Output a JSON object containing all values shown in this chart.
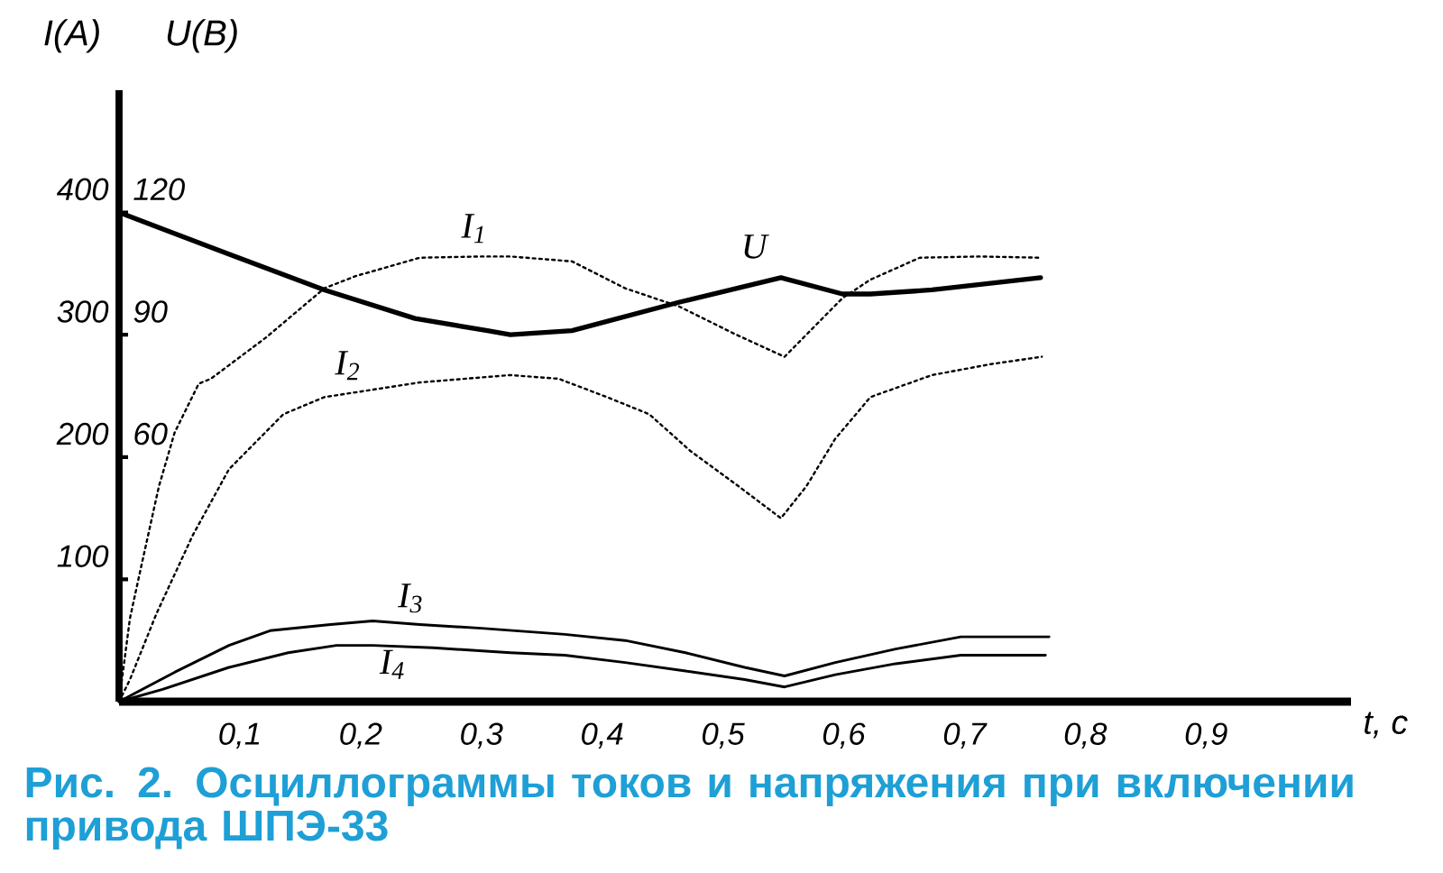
{
  "chart_data": {
    "type": "line",
    "title": "Рис. 2. Осциллограммы токов и напряжения при включении привода ШПЭ-33",
    "xlabel": "t, c",
    "ylabel": "I(A)",
    "y2label": "U(B)",
    "xlim": [
      0,
      1.02
    ],
    "ylim": [
      0,
      500
    ],
    "y2lim": [
      0,
      150
    ],
    "xticks": [
      {
        "value": 0.1,
        "label": "0,1"
      },
      {
        "value": 0.2,
        "label": "0,2"
      },
      {
        "value": 0.3,
        "label": "0,3"
      },
      {
        "value": 0.4,
        "label": "0,4"
      },
      {
        "value": 0.5,
        "label": "0,5"
      },
      {
        "value": 0.6,
        "label": "0,6"
      },
      {
        "value": 0.7,
        "label": "0,7"
      },
      {
        "value": 0.8,
        "label": "0,8"
      },
      {
        "value": 0.9,
        "label": "0,9"
      }
    ],
    "yticks": [
      100,
      200,
      300,
      400
    ],
    "y2ticks": [
      60,
      90,
      120
    ],
    "series": [
      {
        "name": "I$_{1}$",
        "color": "#000000",
        "line_style": "dotted",
        "x": [
          0,
          0.009,
          0.018,
          0.033,
          0.046,
          0.066,
          0.076,
          0.122,
          0.17,
          0.196,
          0.249,
          0.3,
          0.324,
          0.375,
          0.419,
          0.464,
          0.509,
          0.551,
          0.573,
          0.599,
          0.622,
          0.663,
          0.712,
          0.763
        ],
        "values": [
          0,
          68,
          109,
          176,
          220,
          260,
          264,
          298,
          338,
          348,
          363,
          364,
          364,
          360,
          338,
          323,
          301,
          282,
          304,
          330,
          345,
          363,
          364,
          363
        ]
      },
      {
        "name": "I$_{2}$",
        "color": "#000000",
        "line_style": "dotted",
        "x": [
          0,
          0.009,
          0.031,
          0.061,
          0.091,
          0.11,
          0.136,
          0.17,
          0.249,
          0.324,
          0.364,
          0.404,
          0.439,
          0.473,
          0.513,
          0.548,
          0.569,
          0.593,
          0.622,
          0.673,
          0.722,
          0.764
        ],
        "values": [
          0,
          18,
          72,
          136,
          190,
          209,
          235,
          249,
          261,
          267,
          264,
          249,
          235,
          205,
          176,
          150,
          176,
          215,
          249,
          267,
          276,
          282
        ]
      },
      {
        "name": "I$_{3}$",
        "color": "#000000",
        "line_style": "solid",
        "x": [
          0,
          0.046,
          0.091,
          0.125,
          0.175,
          0.21,
          0.249,
          0.3,
          0.369,
          0.419,
          0.469,
          0.518,
          0.551,
          0.593,
          0.643,
          0.697,
          0.77
        ],
        "values": [
          0,
          24,
          46,
          58,
          63,
          66,
          63,
          60,
          55,
          50,
          40,
          28,
          21,
          32,
          43,
          53,
          53
        ]
      },
      {
        "name": "I$_{4}$",
        "color": "#000000",
        "line_style": "solid",
        "x": [
          0,
          0.036,
          0.091,
          0.14,
          0.18,
          0.21,
          0.26,
          0.324,
          0.369,
          0.419,
          0.469,
          0.518,
          0.551,
          0.593,
          0.643,
          0.697,
          0.767
        ],
        "values": [
          0,
          10,
          28,
          40,
          46,
          46,
          44,
          40,
          38,
          32,
          25,
          18,
          12,
          22,
          31,
          38,
          38
        ]
      },
      {
        "name": "U",
        "color": "#000000",
        "line_style": "solid",
        "axis": "y2",
        "x": [
          0,
          0.08,
          0.17,
          0.245,
          0.305,
          0.324,
          0.375,
          0.464,
          0.548,
          0.599,
          0.622,
          0.673,
          0.763
        ],
        "values": [
          120,
          111,
          101,
          94,
          91,
          90,
          91,
          98,
          104,
          100,
          100,
          101,
          104
        ]
      }
    ]
  }
}
